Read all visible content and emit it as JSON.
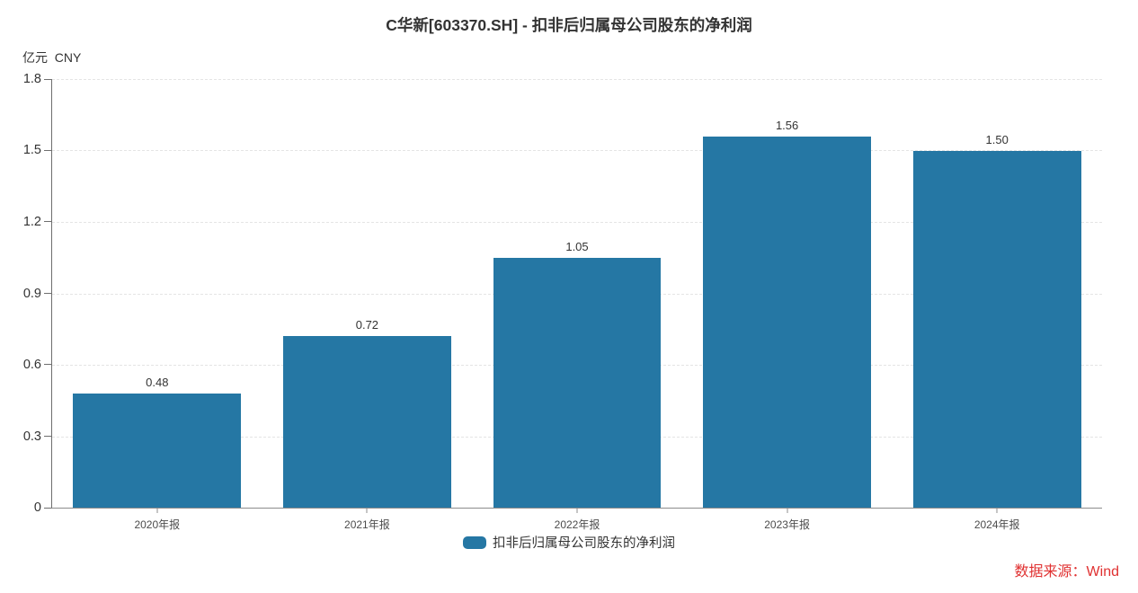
{
  "title": "C华新[603370.SH] - 扣非后归属母公司股东的净利润",
  "y_unit_label": "亿元  CNY",
  "legend": {
    "label": "扣非后归属母公司股东的净利润"
  },
  "source_note": "数据来源：Wind",
  "colors": {
    "bar": "#2577a4",
    "grid": "#e4e4e4",
    "axis": "#6e6e6e",
    "title_text": "#333333",
    "source_text": "#e03131"
  },
  "chart_data": {
    "type": "bar",
    "title": "C华新[603370.SH] - 扣非后归属母公司股东的净利润",
    "categories": [
      "2020年报",
      "2021年报",
      "2022年报",
      "2023年报",
      "2024年报"
    ],
    "values": [
      0.48,
      0.72,
      1.05,
      1.56,
      1.5
    ],
    "value_labels": [
      "0.48",
      "0.72",
      "1.05",
      "1.56",
      "1.50"
    ],
    "series_name": "扣非后归属母公司股东的净利润",
    "xlabel": "",
    "ylabel": "亿元 CNY",
    "ylim": [
      0,
      1.8
    ],
    "yticks": [
      0,
      0.3,
      0.6,
      0.9,
      1.2,
      1.5,
      1.8
    ],
    "grid": true,
    "grid_style": "dashed",
    "bar_width_fraction": 0.8,
    "legend_position": "bottom"
  }
}
